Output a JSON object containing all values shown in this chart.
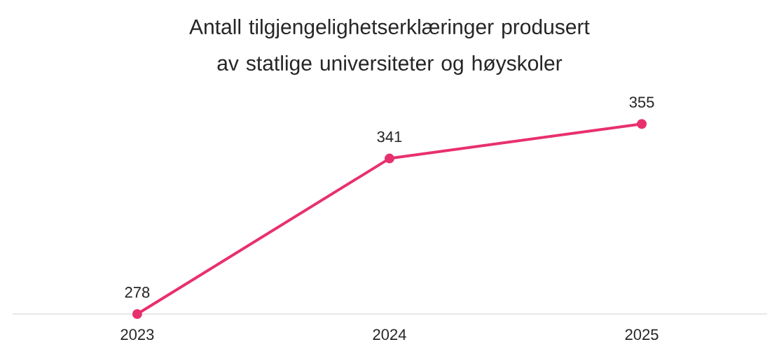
{
  "chart_data": {
    "type": "line",
    "title": "Antall tilgjengelighetserklæringer produsert av statlige universiteter og høyskoler",
    "categories": [
      "2023",
      "2024",
      "2025"
    ],
    "series": [
      {
        "color": "#e8306f",
        "values": [
          278,
          341,
          355
        ]
      }
    ],
    "tick_labels": "x",
    "data_labels": true,
    "marker": "circle",
    "line_style": "solid"
  }
}
